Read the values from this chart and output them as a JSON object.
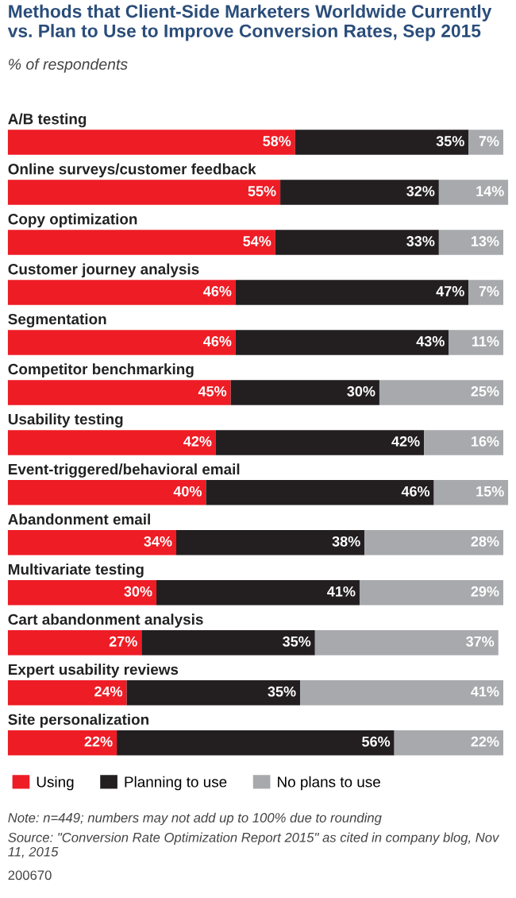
{
  "chart_data": {
    "type": "bar",
    "orientation": "horizontal",
    "stacked": true,
    "title": "Methods that Client-Side Marketers Worldwide Currently vs. Plan to Use to Improve Conversion Rates, Sep 2015",
    "subtitle": "% of respondents",
    "categories": [
      "A/B testing",
      "Online surveys/customer feedback",
      "Copy optimization",
      "Customer journey analysis",
      "Segmentation",
      "Competitor benchmarking",
      "Usability testing",
      "Event-triggered/behavioral email",
      "Abandonment email",
      "Multivariate testing",
      "Cart abandonment analysis",
      "Expert usability reviews",
      "Site personalization"
    ],
    "series": [
      {
        "name": "Using",
        "color": "#ee1c25",
        "values": [
          58,
          55,
          54,
          46,
          46,
          45,
          42,
          40,
          34,
          30,
          27,
          24,
          22
        ],
        "value_labels": [
          "58%",
          "55%",
          "54%",
          "46%",
          "46%",
          "45%",
          "42%",
          "40%",
          "34%",
          "30%",
          "27%",
          "24%",
          "22%"
        ]
      },
      {
        "name": "Planning to use",
        "color": "#231f20",
        "values": [
          35,
          32,
          33,
          47,
          43,
          30,
          42,
          46,
          38,
          41,
          35,
          35,
          56
        ],
        "value_labels": [
          "35%",
          "32%",
          "33%",
          "47%",
          "43%",
          "30%",
          "42%",
          "46%",
          "38%",
          "41%",
          "35%",
          "35%",
          "56%"
        ]
      },
      {
        "name": "No plans to use",
        "color": "#a7a9ac",
        "values": [
          7,
          14,
          13,
          7,
          11,
          25,
          16,
          15,
          28,
          29,
          37,
          41,
          22
        ],
        "value_labels": [
          "7%",
          "14%",
          "13%",
          "7%",
          "11%",
          "25%",
          "16%",
          "15%",
          "28%",
          "29%",
          "37%",
          "41%",
          "22%"
        ]
      }
    ],
    "legend": "bottom left",
    "annotations": [
      "Note: n=449; numbers may not add up to 100% due to rounding",
      "Source: \"Conversion Rate Optimization Report 2015\" as cited in company blog, Nov 11, 2015",
      "200670"
    ]
  }
}
